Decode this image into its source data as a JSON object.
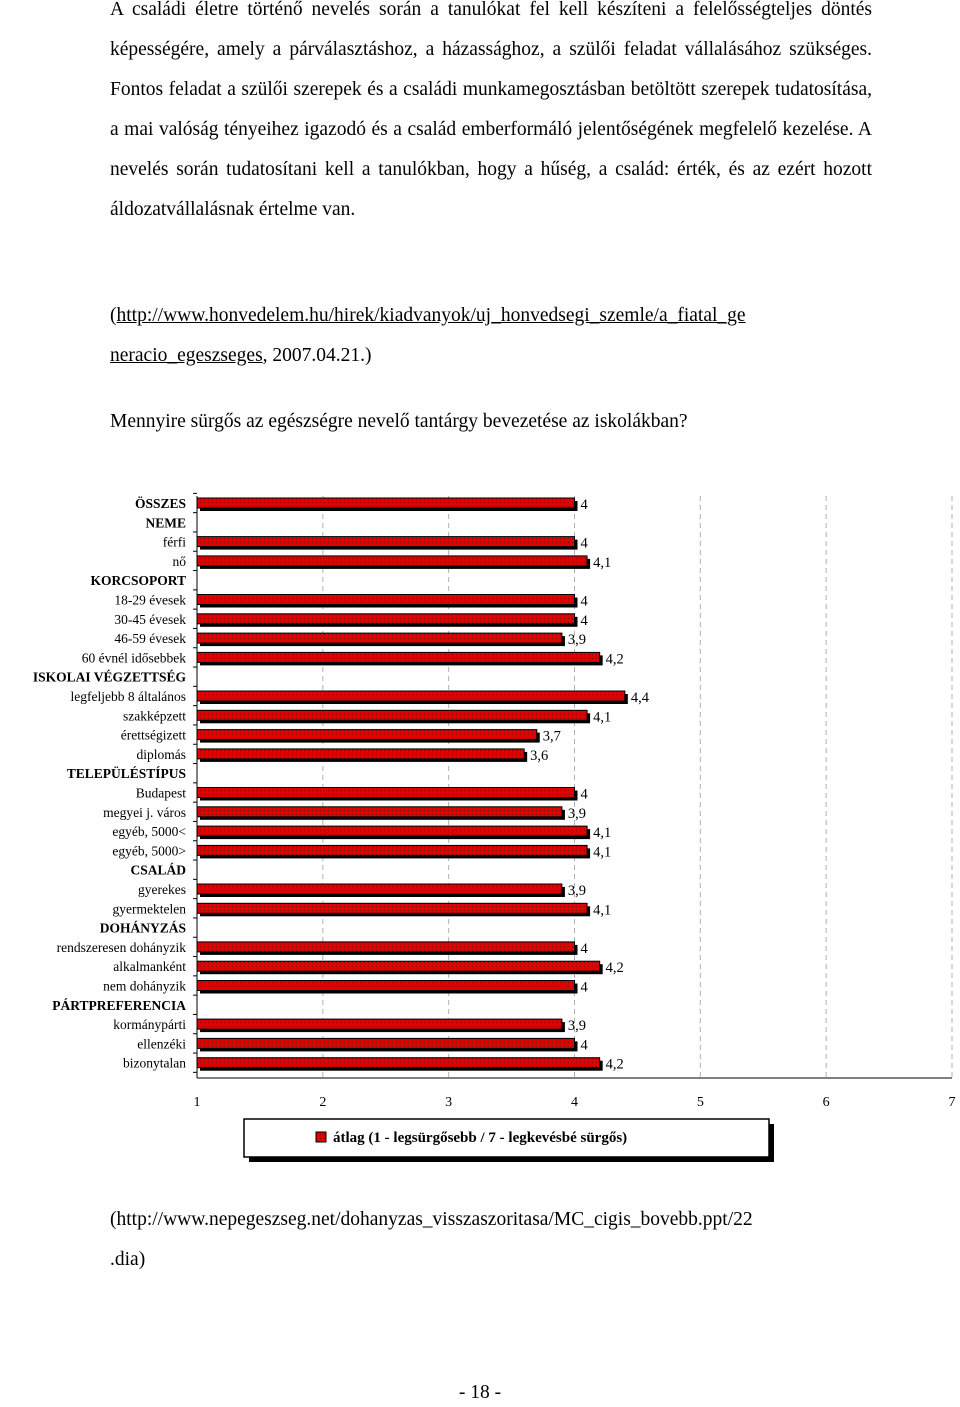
{
  "paragraph": "A családi életre történő nevelés során a tanulókat fel kell készíteni a felelősségteljes döntés képességére, amely a párválasztáshoz, a házassághoz, a szülői feladat vállalásához szükséges. Fontos feladat a szülői szerepek és a családi munkamegosztásban betöltött szerepek tudatosítása, a mai valóság tényeihez igazodó és a család emberformáló jelentőségének megfelelő kezelése. A nevelés során tudatosítani kell a tanulókban, hogy a hűség, a család: érték, és az ezért hozott áldozatvállalásnak értelme van.",
  "source1": {
    "open": "(",
    "url_line1": "http://www.honvedelem.hu/hirek/kiadvanyok/uj_honvedsegi_szemle/a_fiatal_ge",
    "url_line2": "neracio_egeszseges",
    "tail": ", 2007.04.21.)"
  },
  "question": "Mennyire sürgős az egészségre nevelő tantárgy bevezetése az iskolákban?",
  "chart_data": {
    "type": "bar",
    "orientation": "horizontal",
    "title": "",
    "xlabel": "",
    "ylabel": "",
    "xlim": [
      1,
      7
    ],
    "xticks": [
      "1",
      "2",
      "3",
      "4",
      "5",
      "6",
      "7"
    ],
    "legend": "átlag (1 - legsürgősebb / 7 - legkevésbé sürgős)",
    "legend_position": "bottom",
    "bar_color": "#e00000",
    "categories": [
      {
        "label": "ÖSSZES",
        "value": 4,
        "value_label": "4",
        "group": true
      },
      {
        "label": "NEME",
        "value": null,
        "value_label": "",
        "group": true
      },
      {
        "label": "férfi",
        "value": 4,
        "value_label": "4"
      },
      {
        "label": "nő",
        "value": 4.1,
        "value_label": "4,1"
      },
      {
        "label": "KORCSOPORT",
        "value": null,
        "value_label": "",
        "group": true
      },
      {
        "label": "18-29 évesek",
        "value": 4,
        "value_label": "4"
      },
      {
        "label": "30-45 évesek",
        "value": 4,
        "value_label": "4"
      },
      {
        "label": "46-59 évesek",
        "value": 3.9,
        "value_label": "3,9"
      },
      {
        "label": "60 évnél idősebbek",
        "value": 4.2,
        "value_label": "4,2"
      },
      {
        "label": "ISKOLAI VÉGZETTSÉG",
        "value": null,
        "value_label": "",
        "group": true
      },
      {
        "label": "legfeljebb 8 általános",
        "value": 4.4,
        "value_label": "4,4"
      },
      {
        "label": "szakképzett",
        "value": 4.1,
        "value_label": "4,1"
      },
      {
        "label": "érettségizett",
        "value": 3.7,
        "value_label": "3,7"
      },
      {
        "label": "diplomás",
        "value": 3.6,
        "value_label": "3,6"
      },
      {
        "label": "TELEPÜLÉSTÍPUS",
        "value": null,
        "value_label": "",
        "group": true
      },
      {
        "label": "Budapest",
        "value": 4,
        "value_label": "4"
      },
      {
        "label": "megyei j. város",
        "value": 3.9,
        "value_label": "3,9"
      },
      {
        "label": "egyéb, 5000<",
        "value": 4.1,
        "value_label": "4,1"
      },
      {
        "label": "egyéb, 5000>",
        "value": 4.1,
        "value_label": "4,1"
      },
      {
        "label": "CSALÁD",
        "value": null,
        "value_label": "",
        "group": true
      },
      {
        "label": "gyerekes",
        "value": 3.9,
        "value_label": "3,9"
      },
      {
        "label": "gyermektelen",
        "value": 4.1,
        "value_label": "4,1"
      },
      {
        "label": "DOHÁNYZÁS",
        "value": null,
        "value_label": "",
        "group": true
      },
      {
        "label": "rendszeresen dohányzik",
        "value": 4,
        "value_label": "4"
      },
      {
        "label": "alkalmanként",
        "value": 4.2,
        "value_label": "4,2"
      },
      {
        "label": "nem dohányzik",
        "value": 4,
        "value_label": "4"
      },
      {
        "label": "PÁRTPREFERENCIA",
        "value": null,
        "value_label": "",
        "group": true
      },
      {
        "label": "kormánypárti",
        "value": 3.9,
        "value_label": "3,9"
      },
      {
        "label": "ellenzéki",
        "value": 4,
        "value_label": "4"
      },
      {
        "label": "bizonytalan",
        "value": 4.2,
        "value_label": "4,2"
      }
    ]
  },
  "source2": {
    "line1": "(http://www.nepegeszseg.net/dohanyzas_visszaszoritasa/MC_cigis_bovebb.ppt/22",
    "line2": ".dia)"
  },
  "page_number": "- 18 -"
}
